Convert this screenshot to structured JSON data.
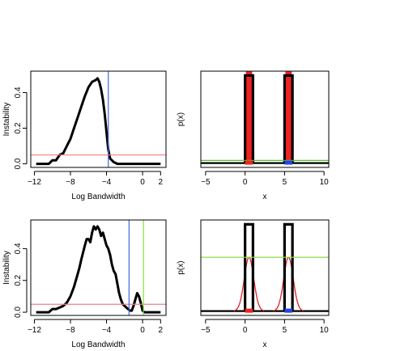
{
  "chart_data": [
    {
      "panel": "top-left",
      "type": "line",
      "xlabel": "Log Bandwidth",
      "ylabel": "Instability",
      "xlim": [
        -12.4,
        2.6
      ],
      "ylim": [
        -0.02,
        0.52
      ],
      "xticks": [
        -12,
        -8,
        -4,
        0,
        2
      ],
      "xtick_labels": [
        "−12",
        "−8",
        "−4",
        "0",
        "2"
      ],
      "yticks": [
        0.0,
        0.2,
        0.4
      ],
      "ytick_labels": [
        "0.0",
        "0.2",
        "0.4"
      ],
      "series": [
        {
          "x": [
            -11.8,
            -11.0,
            -10.4,
            -10.0,
            -9.6,
            -9.2,
            -8.8,
            -8.4,
            -8.0,
            -7.6,
            -7.2,
            -6.8,
            -6.4,
            -6.0,
            -5.6,
            -5.2,
            -5.0,
            -4.8,
            -4.6,
            -4.4,
            -4.2,
            -4.0,
            -3.8,
            -3.6,
            -3.2,
            -2.8,
            -2.0,
            -1.0,
            0.0,
            1.0,
            2.0
          ],
          "y": [
            0.0,
            0.0,
            0.0,
            0.02,
            0.02,
            0.05,
            0.06,
            0.1,
            0.14,
            0.2,
            0.26,
            0.32,
            0.38,
            0.43,
            0.46,
            0.47,
            0.48,
            0.46,
            0.42,
            0.36,
            0.28,
            0.18,
            0.08,
            0.03,
            0.01,
            0.0,
            0.0,
            0.0,
            0.0,
            0.0,
            0.0
          ]
        }
      ],
      "hlines": [
        {
          "y": 0.05,
          "color": "#f08080"
        }
      ],
      "vlines": [
        {
          "x": -3.8,
          "color": "#4466dd"
        }
      ]
    },
    {
      "panel": "top-right",
      "type": "line",
      "xlabel": "x",
      "ylabel": "p(x)",
      "xlim": [
        -5.6,
        10.6
      ],
      "ylim": [
        -0.05,
        1.05
      ],
      "xticks": [
        -5,
        0,
        5,
        10
      ],
      "xtick_labels": [
        "−5",
        "0",
        "5",
        "10"
      ],
      "boxes": [
        {
          "x0": 0.0,
          "x1": 1.0,
          "y": 1.0
        },
        {
          "x0": 5.0,
          "x1": 6.0,
          "y": 1.0
        }
      ],
      "baseline_y": 0.0,
      "hline": {
        "y": 0.03,
        "color": "#55bb33"
      },
      "red_bands": [
        [
          0.1,
          0.9
        ],
        [
          5.1,
          5.9
        ]
      ],
      "rug": [
        {
          "x0": 0.0,
          "x1": 1.0,
          "color": "#ee2222"
        },
        {
          "x0": 5.0,
          "x1": 6.0,
          "color": "#2244ee"
        }
      ]
    },
    {
      "panel": "bottom-left",
      "type": "line",
      "xlabel": "Log Bandwidth",
      "ylabel": "Instability",
      "xlim": [
        -12.4,
        2.6
      ],
      "ylim": [
        -0.02,
        0.58
      ],
      "xticks": [
        -12,
        -8,
        -4,
        0,
        2
      ],
      "xtick_labels": [
        "−12",
        "−8",
        "−4",
        "0",
        "2"
      ],
      "yticks": [
        0.0,
        0.2,
        0.4
      ],
      "ytick_labels": [
        "0.0",
        "0.2",
        "0.4"
      ],
      "series": [
        {
          "x": [
            -11.8,
            -11.0,
            -10.4,
            -10.0,
            -9.6,
            -9.2,
            -8.8,
            -8.4,
            -8.2,
            -8.0,
            -7.6,
            -7.2,
            -7.0,
            -6.8,
            -6.4,
            -6.2,
            -6.0,
            -5.8,
            -5.6,
            -5.4,
            -5.2,
            -5.0,
            -4.8,
            -4.6,
            -4.4,
            -4.2,
            -4.0,
            -3.8,
            -3.6,
            -3.4,
            -3.2,
            -3.0,
            -2.8,
            -2.6,
            -2.4,
            -2.2,
            -2.0,
            -1.8,
            -1.6,
            -1.4,
            -1.2,
            -1.0,
            -0.8,
            -0.6,
            -0.4,
            -0.2,
            0.0,
            0.2,
            0.4,
            0.6,
            1.0,
            1.6,
            2.0
          ],
          "y": [
            0.0,
            0.0,
            0.0,
            0.02,
            0.02,
            0.03,
            0.04,
            0.06,
            0.08,
            0.1,
            0.16,
            0.24,
            0.28,
            0.33,
            0.42,
            0.46,
            0.46,
            0.44,
            0.5,
            0.54,
            0.52,
            0.54,
            0.52,
            0.48,
            0.5,
            0.46,
            0.42,
            0.4,
            0.36,
            0.3,
            0.26,
            0.24,
            0.18,
            0.12,
            0.08,
            0.05,
            0.04,
            0.03,
            0.02,
            0.01,
            0.01,
            0.04,
            0.08,
            0.12,
            0.1,
            0.06,
            0.01,
            0.0,
            0.0,
            0.0,
            0.0,
            0.0,
            0.0
          ]
        }
      ],
      "hlines": [
        {
          "y": 0.05,
          "color": "#f08080"
        }
      ],
      "vlines": [
        {
          "x": -1.5,
          "color": "#4466dd"
        },
        {
          "x": 0.1,
          "color": "#88dd44"
        }
      ]
    },
    {
      "panel": "bottom-right",
      "type": "line",
      "xlabel": "x",
      "ylabel": "p(x)",
      "xlim": [
        -5.6,
        10.6
      ],
      "ylim": [
        -0.05,
        1.05
      ],
      "xticks": [
        -5,
        0,
        5,
        10
      ],
      "xtick_labels": [
        "−5",
        "0",
        "5",
        "10"
      ],
      "boxes": [
        {
          "x0": 0.0,
          "x1": 1.0,
          "y": 1.0
        },
        {
          "x0": 5.0,
          "x1": 6.0,
          "y": 1.0
        }
      ],
      "baseline_y": 0.0,
      "hline": {
        "y": 0.62,
        "color": "#88dd44"
      },
      "gaussians": [
        {
          "mu": 0.5,
          "sigma": 0.6,
          "peak": 0.62
        },
        {
          "mu": 5.5,
          "sigma": 0.6,
          "peak": 0.62
        }
      ],
      "curve_color": "#dd2222",
      "rug": [
        {
          "x0": 0.0,
          "x1": 1.0,
          "color": "#ee2222"
        },
        {
          "x0": 5.0,
          "x1": 6.0,
          "color": "#2244ee"
        }
      ]
    }
  ]
}
